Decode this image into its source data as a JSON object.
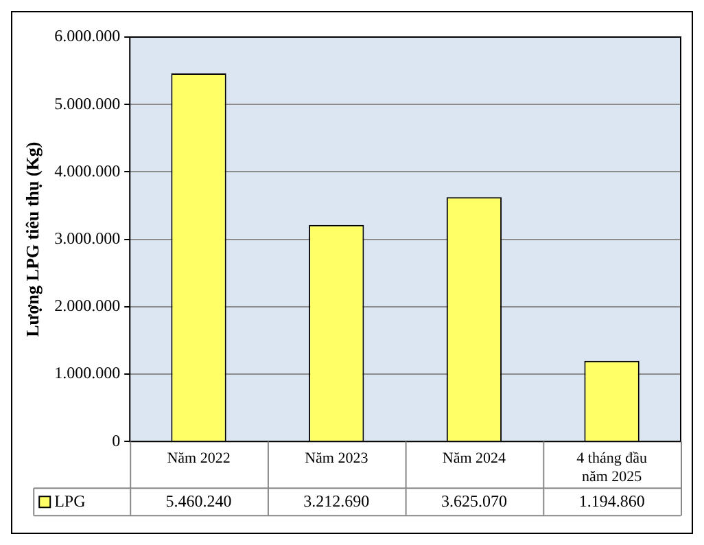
{
  "chart_data": {
    "type": "bar",
    "ylabel": "Lượng LPG tiêu thụ (Kg)",
    "categories": [
      "Năm 2022",
      "Năm 2023",
      "Năm 2024",
      "4 tháng đầu năm 2025"
    ],
    "series": [
      {
        "name": "LPG",
        "color": "#ffff66",
        "values": [
          5460240,
          3212690,
          3625070,
          1194860
        ],
        "value_labels": [
          "5.460.240",
          "3.212.690",
          "3.625.070",
          "1.194.860"
        ]
      }
    ],
    "ylim": [
      0,
      6000000
    ],
    "yticks": [
      0,
      {
        "value": 1000000,
        "label": "1.000.000"
      },
      {
        "value": 2000000,
        "label": "2.000.000"
      },
      {
        "value": 3000000,
        "label": "3.000.000"
      },
      {
        "value": 4000000,
        "label": "4.000.000"
      },
      {
        "value": 5000000,
        "label": "5.000.000"
      },
      {
        "value": 6000000,
        "label": "6.000.000"
      }
    ],
    "grid": "y",
    "legend": "bottom left"
  }
}
